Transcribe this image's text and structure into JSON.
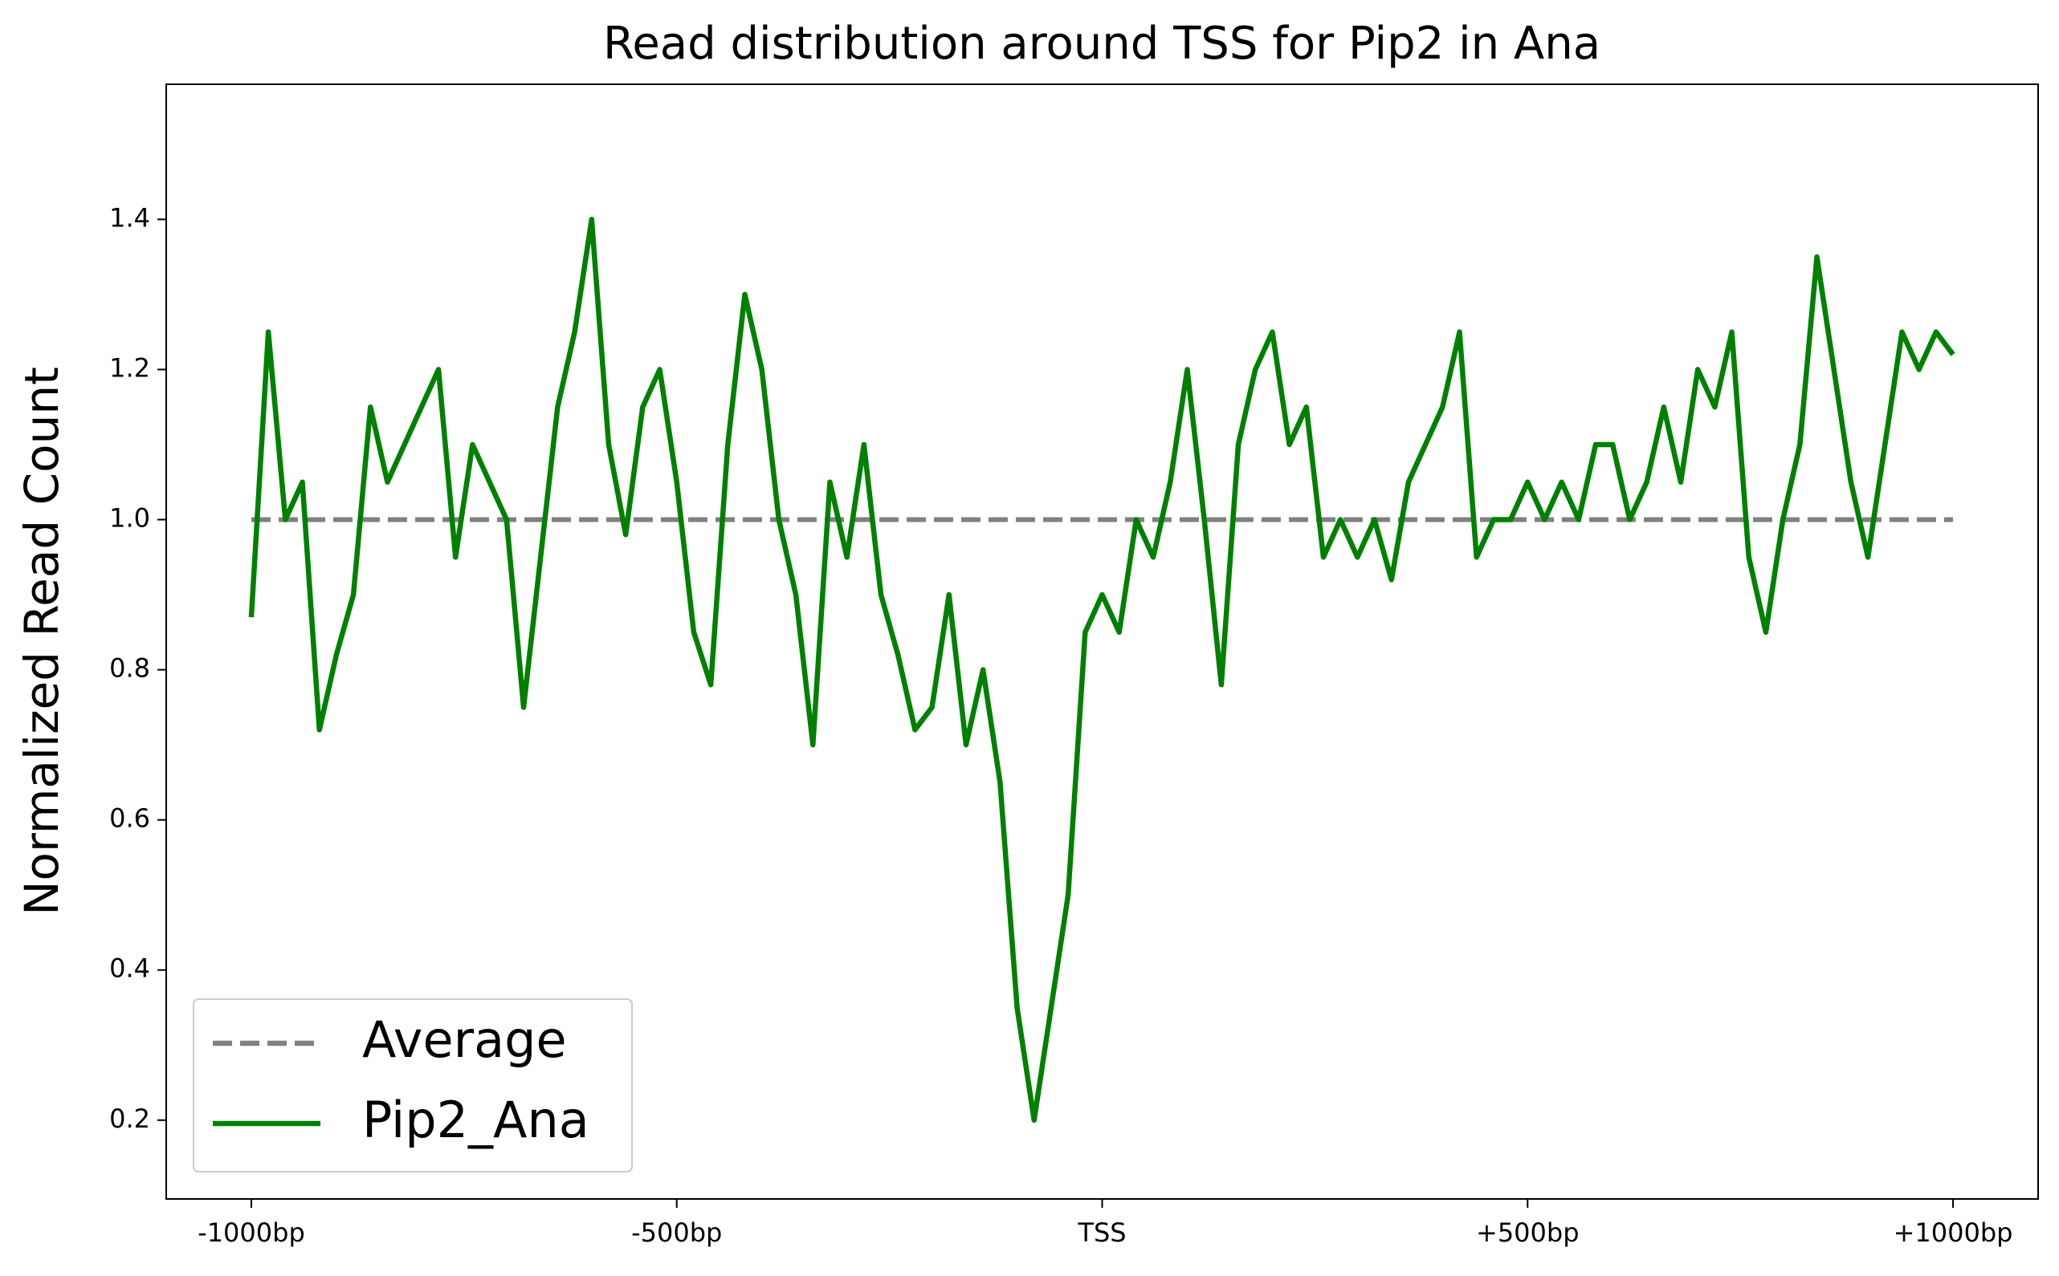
{
  "chart_data": {
    "type": "line",
    "title": "Read distribution around TSS for Pip2 in Ana",
    "ylabel": "Normalized Read Count",
    "xlim": [
      -1100,
      1100
    ],
    "ylim": [
      0.095,
      1.58
    ],
    "xticks": [
      {
        "value": -1000,
        "label": "-1000bp"
      },
      {
        "value": -500,
        "label": "-500bp"
      },
      {
        "value": 0,
        "label": "TSS"
      },
      {
        "value": 500,
        "label": "+500bp"
      },
      {
        "value": 1000,
        "label": "+1000bp"
      }
    ],
    "yticks": [
      0.2,
      0.4,
      0.6,
      0.8,
      {
        "value": 1.0,
        "label": "1.0"
      },
      1.2,
      1.4
    ],
    "grid": false,
    "legend": "lower left",
    "series": [
      {
        "name": "Average",
        "color": "#808080",
        "linestyle": "dashed",
        "x": [
          -1000,
          1000
        ],
        "values": [
          1.0,
          1.0
        ]
      },
      {
        "name": "Pip2_Ana",
        "color": "#008000",
        "linestyle": "solid",
        "x": [
          -1000,
          -980,
          -960,
          -940,
          -920,
          -900,
          -880,
          -860,
          -840,
          -820,
          -800,
          -780,
          -760,
          -740,
          -720,
          -700,
          -680,
          -660,
          -640,
          -620,
          -600,
          -580,
          -560,
          -540,
          -520,
          -500,
          -480,
          -460,
          -440,
          -420,
          -400,
          -380,
          -360,
          -340,
          -320,
          -300,
          -280,
          -260,
          -240,
          -220,
          -200,
          -180,
          -160,
          -140,
          -120,
          -100,
          -80,
          -60,
          -40,
          -20,
          0,
          20,
          40,
          60,
          80,
          100,
          120,
          140,
          160,
          180,
          200,
          220,
          240,
          260,
          280,
          300,
          320,
          340,
          360,
          380,
          400,
          420,
          440,
          460,
          480,
          500,
          520,
          540,
          560,
          580,
          600,
          620,
          640,
          660,
          680,
          700,
          720,
          740,
          760,
          780,
          800,
          820,
          840,
          860,
          880,
          900,
          920,
          940,
          960,
          980,
          1000
        ],
        "values": [
          0.87,
          1.25,
          1.0,
          1.05,
          0.72,
          0.82,
          0.9,
          1.15,
          1.05,
          1.1,
          1.15,
          1.2,
          0.95,
          1.1,
          1.05,
          1.0,
          0.75,
          0.95,
          1.15,
          1.25,
          1.4,
          1.1,
          0.98,
          1.15,
          1.2,
          1.05,
          0.85,
          0.78,
          1.1,
          1.3,
          1.2,
          1.0,
          0.9,
          0.7,
          1.05,
          0.95,
          1.1,
          0.9,
          0.82,
          0.72,
          0.75,
          0.9,
          0.7,
          0.8,
          0.65,
          0.35,
          0.2,
          0.35,
          0.5,
          0.85,
          0.9,
          0.85,
          1.0,
          0.95,
          1.05,
          1.2,
          1.0,
          0.78,
          1.1,
          1.2,
          1.25,
          1.1,
          1.15,
          0.95,
          1.0,
          0.95,
          1.0,
          0.92,
          1.05,
          1.1,
          1.15,
          1.25,
          0.95,
          1.0,
          1.0,
          1.05,
          1.0,
          1.05,
          1.0,
          1.1,
          1.1,
          1.0,
          1.05,
          1.15,
          1.05,
          1.2,
          1.15,
          1.25,
          0.95,
          0.85,
          1.0,
          1.1,
          1.35,
          1.2,
          1.05,
          0.95,
          1.1,
          1.25,
          1.2,
          1.25,
          1.22
        ]
      }
    ]
  }
}
